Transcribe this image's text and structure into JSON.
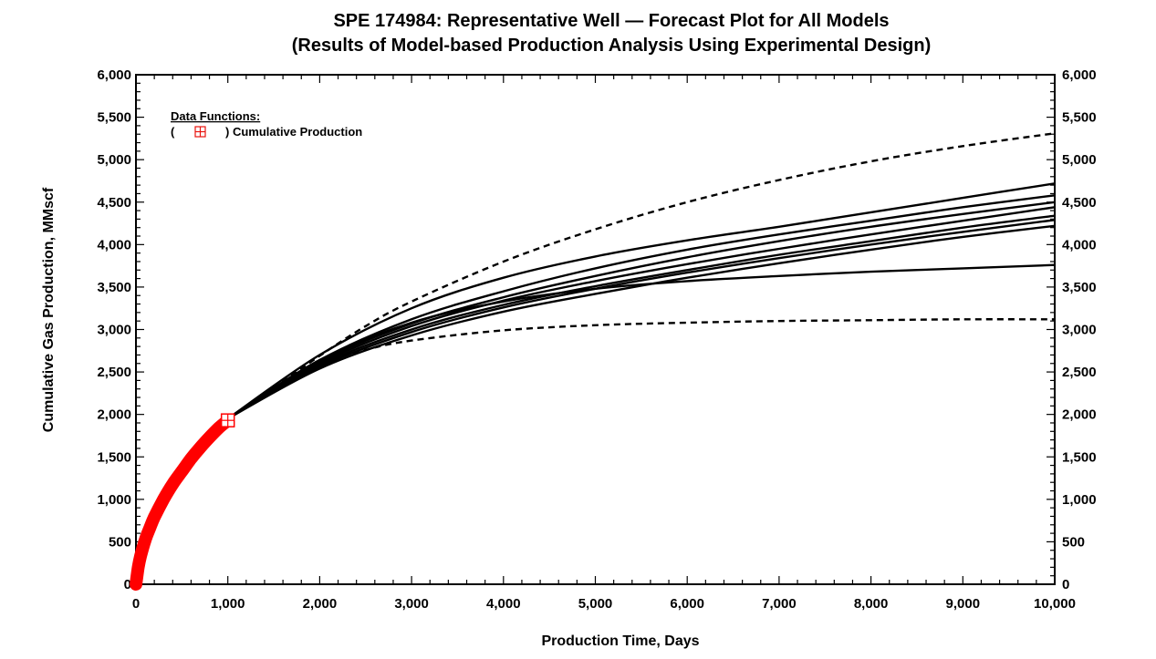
{
  "chart_data": {
    "type": "line",
    "title": "SPE 174984: Representative Well — Forecast Plot for All Models",
    "subtitle": "(Results of Model-based Production Analysis Using Experimental Design)",
    "xlabel": "Production Time, Days",
    "ylabel": "Cumulative Gas Production, MMscf",
    "xlim": [
      0,
      10000
    ],
    "ylim": [
      0,
      6000
    ],
    "x_ticks": [
      "0",
      "1,000",
      "2,000",
      "3,000",
      "4,000",
      "5,000",
      "6,000",
      "7,000",
      "8,000",
      "9,000",
      "10,000"
    ],
    "y_ticks": [
      "0",
      "500",
      "1,000",
      "1,500",
      "2,000",
      "2,500",
      "3,000",
      "3,500",
      "4,000",
      "4,500",
      "5,000",
      "5,500",
      "6,000"
    ],
    "y_ticks_right": [
      "0",
      "500",
      "1,000",
      "1,500",
      "2,000",
      "2,500",
      "3,000",
      "3,500",
      "4,000",
      "4,500",
      "5,000",
      "5,500",
      "6,000"
    ],
    "grid": false,
    "legend": {
      "placement": "top-left",
      "title": "Data Functions:",
      "open_paren": "(",
      "entry": ") Cumulative Production",
      "marker_color": "#e8140f"
    },
    "colors": {
      "data": "#ff0000",
      "forecast": "#000000"
    },
    "series": [
      {
        "name": "Cumulative Production",
        "kind": "data",
        "x": [
          0,
          25,
          50,
          100,
          150,
          200,
          300,
          400,
          500,
          600,
          700,
          800,
          900,
          1000
        ],
        "y": [
          0,
          200,
          330,
          520,
          660,
          790,
          1000,
          1180,
          1330,
          1480,
          1610,
          1730,
          1840,
          1930
        ]
      },
      {
        "kind": "bound-high",
        "style": "dashed",
        "x": [
          1000,
          1500,
          2000,
          2500,
          3000,
          4000,
          5000,
          6000,
          7000,
          8000,
          9000,
          10000
        ],
        "y": [
          1950,
          2310,
          2690,
          3040,
          3330,
          3800,
          4180,
          4500,
          4760,
          4980,
          5160,
          5310
        ]
      },
      {
        "kind": "bound-low",
        "style": "dashed",
        "x": [
          1000,
          1500,
          2000,
          2500,
          3000,
          4000,
          5000,
          6000,
          7000,
          8000,
          9000,
          10000
        ],
        "y": [
          1950,
          2300,
          2590,
          2760,
          2870,
          2990,
          3050,
          3080,
          3100,
          3110,
          3120,
          3120
        ]
      },
      {
        "kind": "model",
        "style": "solid",
        "x": [
          1000,
          2000,
          3000,
          4000,
          5000,
          6000,
          7000,
          8000,
          9000,
          10000
        ],
        "y": [
          1950,
          2700,
          3250,
          3610,
          3860,
          4050,
          4210,
          4380,
          4550,
          4720
        ]
      },
      {
        "kind": "model",
        "style": "solid",
        "x": [
          1000,
          2000,
          3000,
          4000,
          5000,
          6000,
          7000,
          8000,
          9000,
          10000
        ],
        "y": [
          1950,
          2640,
          3120,
          3450,
          3720,
          3940,
          4120,
          4280,
          4440,
          4580
        ]
      },
      {
        "kind": "model",
        "style": "solid",
        "x": [
          1000,
          2000,
          3000,
          4000,
          5000,
          6000,
          7000,
          8000,
          9000,
          10000
        ],
        "y": [
          1950,
          2620,
          3070,
          3380,
          3630,
          3850,
          4040,
          4210,
          4360,
          4500
        ]
      },
      {
        "kind": "model",
        "style": "solid",
        "x": [
          1000,
          2000,
          3000,
          4000,
          5000,
          6000,
          7000,
          8000,
          9000,
          10000
        ],
        "y": [
          1950,
          2600,
          3040,
          3340,
          3570,
          3770,
          3950,
          4120,
          4280,
          4440
        ]
      },
      {
        "kind": "model",
        "style": "solid",
        "x": [
          1000,
          2000,
          3000,
          4000,
          5000,
          6000,
          7000,
          8000,
          9000,
          10000
        ],
        "y": [
          1950,
          2580,
          3000,
          3290,
          3510,
          3700,
          3880,
          4040,
          4200,
          4340
        ]
      },
      {
        "kind": "model",
        "style": "solid",
        "x": [
          1000,
          2000,
          3000,
          4000,
          5000,
          6000,
          7000,
          8000,
          9000,
          10000
        ],
        "y": [
          1950,
          2560,
          2970,
          3260,
          3480,
          3670,
          3840,
          4000,
          4150,
          4290
        ]
      },
      {
        "kind": "model",
        "style": "solid",
        "x": [
          1000,
          2000,
          3000,
          4000,
          5000,
          6000,
          7000,
          8000,
          9000,
          10000
        ],
        "y": [
          1950,
          2540,
          2930,
          3210,
          3420,
          3610,
          3780,
          3940,
          4090,
          4220
        ]
      },
      {
        "kind": "model",
        "style": "solid",
        "x": [
          1000,
          2000,
          3000,
          4000,
          5000,
          6000,
          7000,
          8000,
          9000,
          10000
        ],
        "y": [
          1950,
          2640,
          3080,
          3330,
          3480,
          3570,
          3630,
          3680,
          3720,
          3760
        ]
      }
    ]
  }
}
